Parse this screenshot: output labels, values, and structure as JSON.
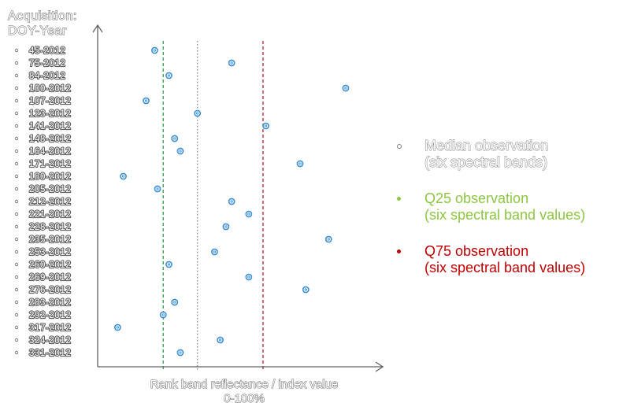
{
  "y_axis_title": [
    "Acquisition:",
    "DOY-Year"
  ],
  "x_axis_title": [
    "Rank band reflectance / index value",
    "0-100%"
  ],
  "chart_data": {
    "type": "scatter",
    "categories": [
      "45-2012",
      "75-2012",
      "84-2012",
      "100-2012",
      "107-2012",
      "123-2012",
      "141-2012",
      "148-2012",
      "164-2012",
      "171-2012",
      "180-2012",
      "205-2012",
      "212-2012",
      "221-2012",
      "228-2012",
      "235-2012",
      "253-2012",
      "260-2012",
      "269-2012",
      "276-2012",
      "283-2012",
      "292-2012",
      "317-2012",
      "324-2012",
      "331-2012"
    ],
    "values": [
      20,
      47,
      25,
      87,
      17,
      35,
      59,
      27,
      29,
      71,
      9,
      21,
      47,
      53,
      45,
      81,
      41,
      25,
      53,
      73,
      27,
      23,
      7,
      43,
      29
    ],
    "xlim": [
      0,
      100
    ],
    "reference_lines": [
      {
        "name": "Q25",
        "x": 23,
        "color": "#2e9d4f",
        "style": "dashed"
      },
      {
        "name": "Median",
        "x": 35,
        "color": "#8a8a8a",
        "style": "dotted"
      },
      {
        "name": "Q75",
        "x": 58,
        "color": "#b3202a",
        "style": "dashed"
      }
    ],
    "point_color": "#3a8fd6"
  },
  "legend": [
    {
      "lines": [
        "Median observation",
        "(six spectral bands)"
      ],
      "color": "#ffffff",
      "bullet_color": "#ffffff"
    },
    {
      "lines": [
        "Q25 observation",
        "(six spectral band values)"
      ],
      "color": "#8cc63f",
      "bullet_color": "#8cc63f"
    },
    {
      "lines": [
        "Q75 observation",
        "(six spectral band values)"
      ],
      "color": "#c00000",
      "bullet_color": "#c00000"
    }
  ]
}
